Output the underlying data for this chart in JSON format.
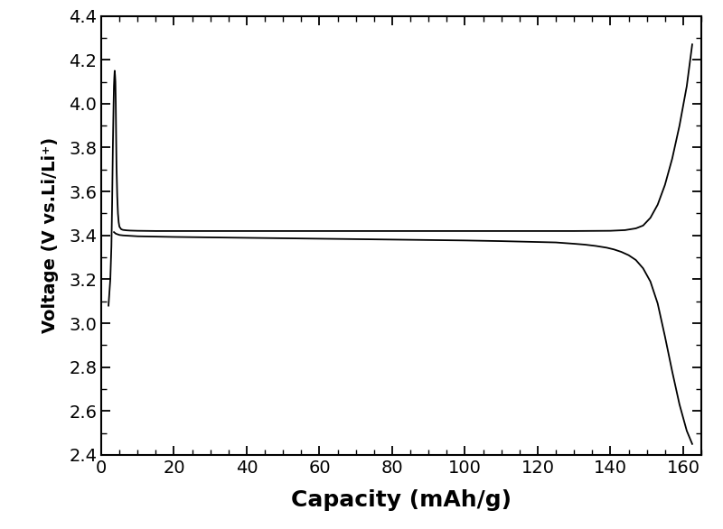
{
  "xlabel": "Capacity (mAh/g)",
  "ylabel": "Voltage (V vs.Li/Li⁺)",
  "xlim": [
    0,
    165
  ],
  "ylim": [
    2.4,
    4.4
  ],
  "xticks": [
    0,
    20,
    40,
    60,
    80,
    100,
    120,
    140,
    160
  ],
  "yticks": [
    2.4,
    2.6,
    2.8,
    3.0,
    3.2,
    3.4,
    3.6,
    3.8,
    4.0,
    4.2,
    4.4
  ],
  "line_color": "#000000",
  "line_width": 1.3,
  "background_color": "#ffffff",
  "charge_curve": {
    "x": [
      2.0,
      2.5,
      2.8,
      3.0,
      3.2,
      3.4,
      3.5,
      3.6,
      3.7,
      3.8,
      3.9,
      4.0,
      4.1,
      4.2,
      4.4,
      4.6,
      4.8,
      5.0,
      5.2,
      5.5,
      6.0,
      7.0,
      8.0,
      10.0,
      15.0,
      20.0,
      30.0,
      40.0,
      50.0,
      60.0,
      70.0,
      80.0,
      90.0,
      100.0,
      110.0,
      120.0,
      130.0,
      140.0,
      144.0,
      147.0,
      149.0,
      151.0,
      153.0,
      155.0,
      157.0,
      159.0,
      161.0,
      162.5
    ],
    "y": [
      3.08,
      3.2,
      3.35,
      3.55,
      3.8,
      4.0,
      4.08,
      4.12,
      4.15,
      4.13,
      4.1,
      4.0,
      3.85,
      3.72,
      3.58,
      3.5,
      3.46,
      3.44,
      3.435,
      3.428,
      3.425,
      3.423,
      3.422,
      3.421,
      3.42,
      3.42,
      3.42,
      3.42,
      3.42,
      3.42,
      3.42,
      3.42,
      3.42,
      3.42,
      3.42,
      3.42,
      3.42,
      3.421,
      3.424,
      3.432,
      3.445,
      3.48,
      3.54,
      3.63,
      3.75,
      3.9,
      4.08,
      4.27
    ]
  },
  "discharge_curve": {
    "x": [
      3.5,
      4.0,
      4.5,
      5.0,
      6.0,
      8.0,
      10.0,
      20.0,
      30.0,
      40.0,
      50.0,
      60.0,
      70.0,
      80.0,
      90.0,
      100.0,
      110.0,
      120.0,
      125.0,
      130.0,
      133.0,
      136.0,
      139.0,
      141.0,
      143.0,
      145.0,
      147.0,
      149.0,
      151.0,
      153.0,
      155.0,
      157.0,
      159.0,
      161.0,
      162.5
    ],
    "y": [
      3.415,
      3.408,
      3.405,
      3.402,
      3.4,
      3.398,
      3.396,
      3.393,
      3.391,
      3.389,
      3.387,
      3.385,
      3.383,
      3.381,
      3.379,
      3.377,
      3.374,
      3.37,
      3.368,
      3.362,
      3.358,
      3.352,
      3.344,
      3.336,
      3.325,
      3.31,
      3.288,
      3.25,
      3.19,
      3.09,
      2.94,
      2.78,
      2.63,
      2.51,
      2.45
    ]
  }
}
